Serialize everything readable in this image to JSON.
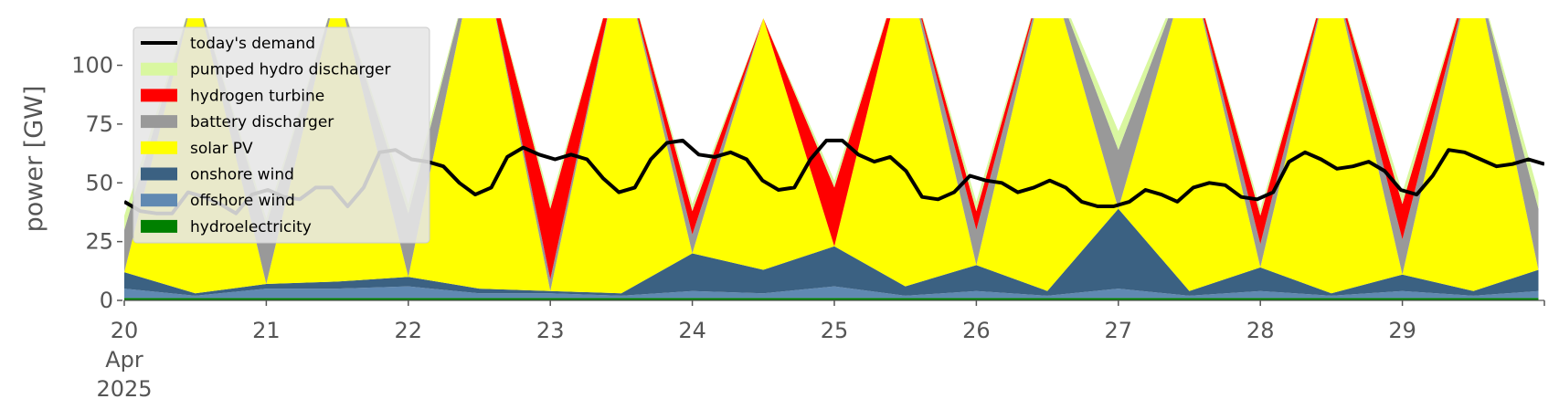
{
  "chart_data": {
    "type": "area",
    "title": "",
    "xlabel": "",
    "ylabel": "power [GW]",
    "ylim": [
      0,
      120
    ],
    "xlim": [
      "2025-04-20 00:00",
      "2025-04-30 00:00"
    ],
    "yticks": [
      "0",
      "25",
      "50",
      "75",
      "100"
    ],
    "xticks": [
      {
        "lines": [
          "20",
          "Apr",
          "2025"
        ]
      },
      {
        "lines": [
          "21"
        ]
      },
      {
        "lines": [
          "22"
        ]
      },
      {
        "lines": [
          "23"
        ]
      },
      {
        "lines": [
          "24"
        ]
      },
      {
        "lines": [
          "25"
        ]
      },
      {
        "lines": [
          "26"
        ]
      },
      {
        "lines": [
          "27"
        ]
      },
      {
        "lines": [
          "28"
        ]
      },
      {
        "lines": [
          "29"
        ]
      }
    ],
    "grid": false,
    "legend_position": "top-left",
    "x": [
      "2025-04-20 00:00",
      "2025-04-20 12:00",
      "2025-04-21 00:00",
      "2025-04-21 12:00",
      "2025-04-22 00:00",
      "2025-04-22 12:00",
      "2025-04-23 00:00",
      "2025-04-23 12:00",
      "2025-04-24 00:00",
      "2025-04-24 12:00",
      "2025-04-25 00:00",
      "2025-04-25 12:00",
      "2025-04-26 00:00",
      "2025-04-26 12:00",
      "2025-04-27 00:00",
      "2025-04-27 12:00",
      "2025-04-28 00:00",
      "2025-04-28 12:00",
      "2025-04-29 00:00",
      "2025-04-29 12:00",
      "2025-04-29 23:00"
    ],
    "series": [
      {
        "name": "hydroelectricity",
        "color": "#008000",
        "values": [
          1,
          1,
          1,
          1,
          1,
          1,
          1,
          1,
          1,
          1,
          1,
          1,
          1,
          1,
          1,
          1,
          1,
          1,
          1,
          1,
          1
        ]
      },
      {
        "name": "offshore wind",
        "color": "#6089b2",
        "values": [
          4,
          1,
          4,
          4,
          5,
          2,
          2,
          1,
          3,
          2,
          5,
          1,
          3,
          1,
          4,
          1,
          3,
          1,
          3,
          1,
          3
        ]
      },
      {
        "name": "onshore wind",
        "color": "#3b6182",
        "values": [
          7,
          1,
          2,
          3,
          4,
          2,
          1,
          1,
          16,
          10,
          17,
          4,
          11,
          2,
          34,
          2,
          10,
          1,
          7,
          2,
          9
        ]
      },
      {
        "name": "solar PV",
        "color": "#ffff00",
        "values": [
          0,
          130,
          0,
          125,
          0,
          150,
          0,
          145,
          0,
          107,
          0,
          140,
          0,
          140,
          0,
          140,
          0,
          140,
          0,
          140,
          0
        ]
      },
      {
        "name": "battery discharger",
        "color": "#999999",
        "values": [
          18,
          0,
          25,
          0,
          27,
          0,
          5,
          0,
          8,
          0,
          0,
          0,
          15,
          0,
          25,
          0,
          10,
          0,
          15,
          0,
          26
        ]
      },
      {
        "name": "hydrogen turbine",
        "color": "#ff0000",
        "values": [
          0,
          0,
          0,
          0,
          0,
          0,
          30,
          0,
          10,
          0,
          25,
          0,
          8,
          0,
          0,
          0,
          12,
          0,
          15,
          0,
          0
        ]
      },
      {
        "name": "pumped hydro discharger",
        "color": "#d9f7a0",
        "values": [
          6,
          0,
          3,
          0,
          4,
          0,
          3,
          0,
          3,
          0,
          3,
          0,
          4,
          0,
          8,
          0,
          3,
          0,
          5,
          0,
          7
        ]
      }
    ],
    "demand": {
      "name": "today's demand",
      "color": "#000000",
      "values": [
        42,
        38,
        37,
        37,
        46,
        44,
        41,
        37,
        45,
        47,
        44,
        43,
        48,
        48,
        40,
        48,
        63,
        64,
        60,
        59,
        57,
        50,
        45,
        48,
        61,
        65,
        62,
        60,
        62,
        60,
        52,
        46,
        48,
        60,
        67,
        68,
        62,
        61,
        63,
        60,
        51,
        47,
        48,
        60,
        68,
        68,
        62,
        59,
        61,
        55,
        44,
        43,
        46,
        53,
        51,
        50,
        46,
        48,
        51,
        48,
        42,
        40,
        40,
        42,
        47,
        45,
        42,
        48,
        50,
        49,
        44,
        43,
        46,
        59,
        63,
        60,
        56,
        57,
        59,
        55,
        47,
        45,
        53,
        64,
        63,
        60,
        57,
        58,
        60,
        58
      ]
    }
  },
  "legend": {
    "items": [
      {
        "label": "today's demand",
        "color": "#000000",
        "kind": "line"
      },
      {
        "label": "pumped hydro discharger",
        "color": "#d9f7a0",
        "kind": "patch"
      },
      {
        "label": "hydrogen turbine",
        "color": "#ff0000",
        "kind": "patch"
      },
      {
        "label": "battery discharger",
        "color": "#999999",
        "kind": "patch"
      },
      {
        "label": "solar PV",
        "color": "#ffff00",
        "kind": "patch"
      },
      {
        "label": "onshore wind",
        "color": "#3b6182",
        "kind": "patch"
      },
      {
        "label": "offshore wind",
        "color": "#6089b2",
        "kind": "patch"
      },
      {
        "label": "hydroelectricity",
        "color": "#008000",
        "kind": "patch"
      }
    ]
  }
}
